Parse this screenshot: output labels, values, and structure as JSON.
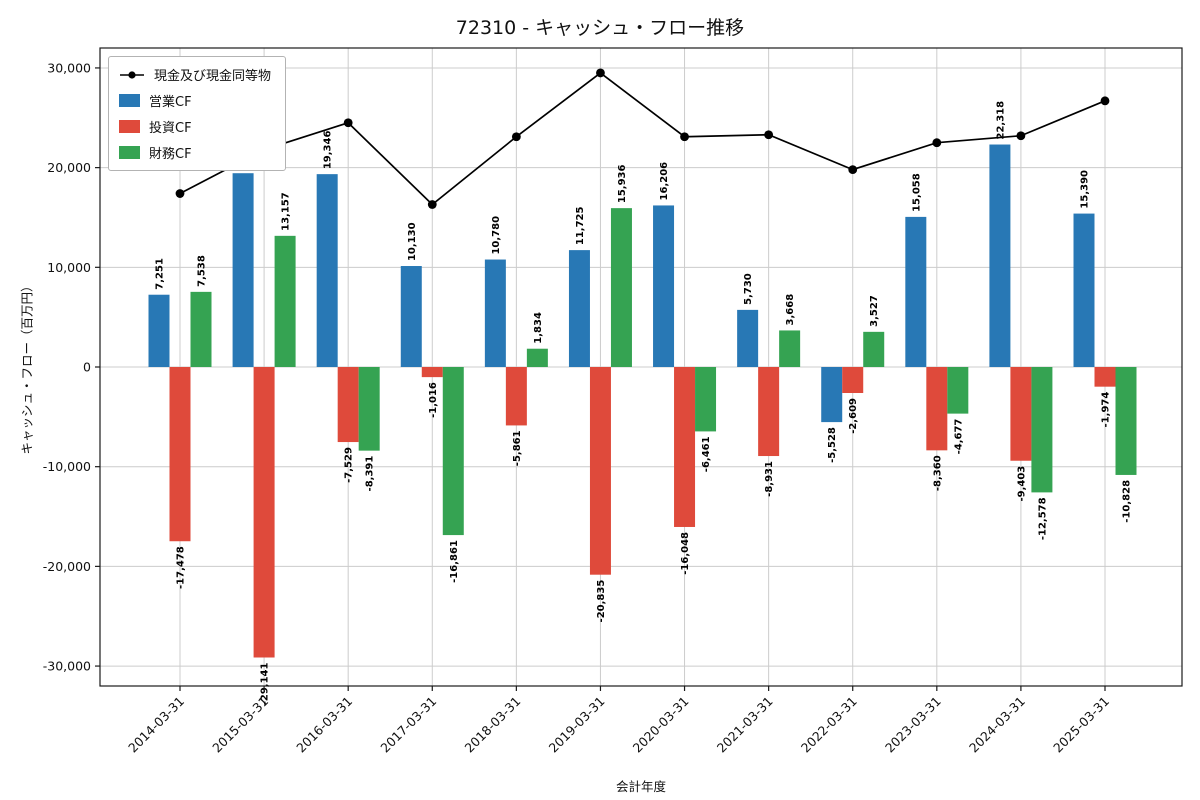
{
  "chart_data": {
    "type": "bar+line",
    "title": "72310 - キャッシュ・フロー推移",
    "xlabel": "会計年度",
    "ylabel": "キャッシュ・フロー（百万円）",
    "categories": [
      "2014-03-31",
      "2015-03-31",
      "2016-03-31",
      "2017-03-31",
      "2018-03-31",
      "2019-03-31",
      "2020-03-31",
      "2021-03-31",
      "2022-03-31",
      "2023-03-31",
      "2024-03-31",
      "2025-03-31"
    ],
    "bar_series": [
      {
        "name": "営業CF",
        "color": "#2878b5",
        "values": [
          7251,
          19440,
          19346,
          10130,
          10780,
          11725,
          16206,
          5730,
          -5528,
          15058,
          22318,
          15390
        ]
      },
      {
        "name": "投資CF",
        "color": "#df4a3b",
        "values": [
          -17478,
          -29141,
          -7529,
          -1016,
          -5861,
          -20835,
          -16048,
          -8931,
          -2609,
          -8360,
          -9403,
          -1974
        ]
      },
      {
        "name": "財務CF",
        "color": "#35a352",
        "values": [
          7538,
          13157,
          -8391,
          -16861,
          1834,
          15936,
          -6461,
          3668,
          3527,
          -4677,
          -12578,
          -10828
        ]
      }
    ],
    "line_series": {
      "name": "現金及び現金同等物",
      "color": "#000000",
      "values": [
        17400,
        21800,
        24500,
        16300,
        23100,
        29500,
        23100,
        23300,
        19800,
        22500,
        23200,
        26700
      ]
    },
    "ylim": [
      -32000,
      32000
    ],
    "yticks": [
      -30000,
      -20000,
      -10000,
      0,
      10000,
      20000,
      30000
    ],
    "grid": true,
    "grid_color": "#cccccc",
    "axis_color": "#1a1a1a",
    "legend_position": "upper-left"
  }
}
